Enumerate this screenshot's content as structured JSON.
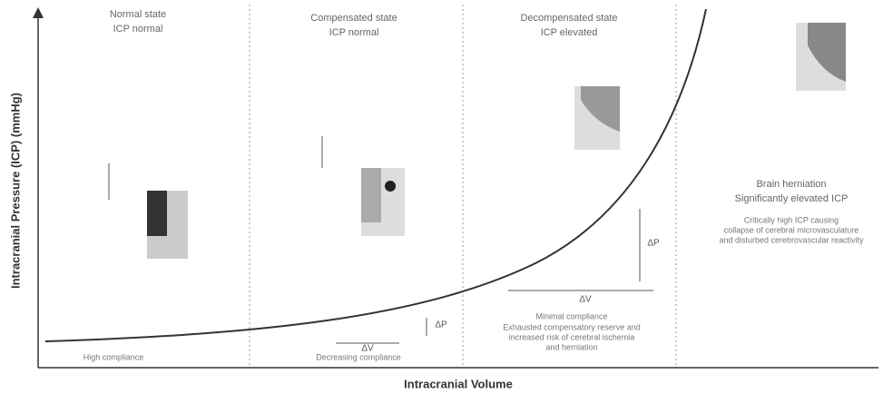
{
  "axes": {
    "y_label": "Intracranial Pressure (ICP) (mmHg)",
    "x_label": "Intracranial Volume"
  },
  "stages": [
    {
      "title": "Normal state",
      "subtitle": "ICP normal",
      "compliance": "High compliance"
    },
    {
      "title": "Compensated state",
      "subtitle": "ICP normal",
      "compliance": "Decreasing compliance",
      "delta_v": "ΔV",
      "delta_p": "ΔP"
    },
    {
      "title": "Decompensated state",
      "subtitle": "ICP elevated",
      "delta_v": "ΔV",
      "delta_p": "ΔP",
      "compliance": "Minimal compliance",
      "note": [
        "Exhausted compensatory reserve and",
        "increased risk of cerebral ischemia",
        "and herniation"
      ]
    },
    {
      "title": "Brain herniation",
      "subtitle": "Significantly elevated ICP",
      "note": [
        "Critically high ICP causing",
        "collapse of cerebral microvasculature",
        "and disturbed cerebrovascular reactivity"
      ]
    }
  ]
}
